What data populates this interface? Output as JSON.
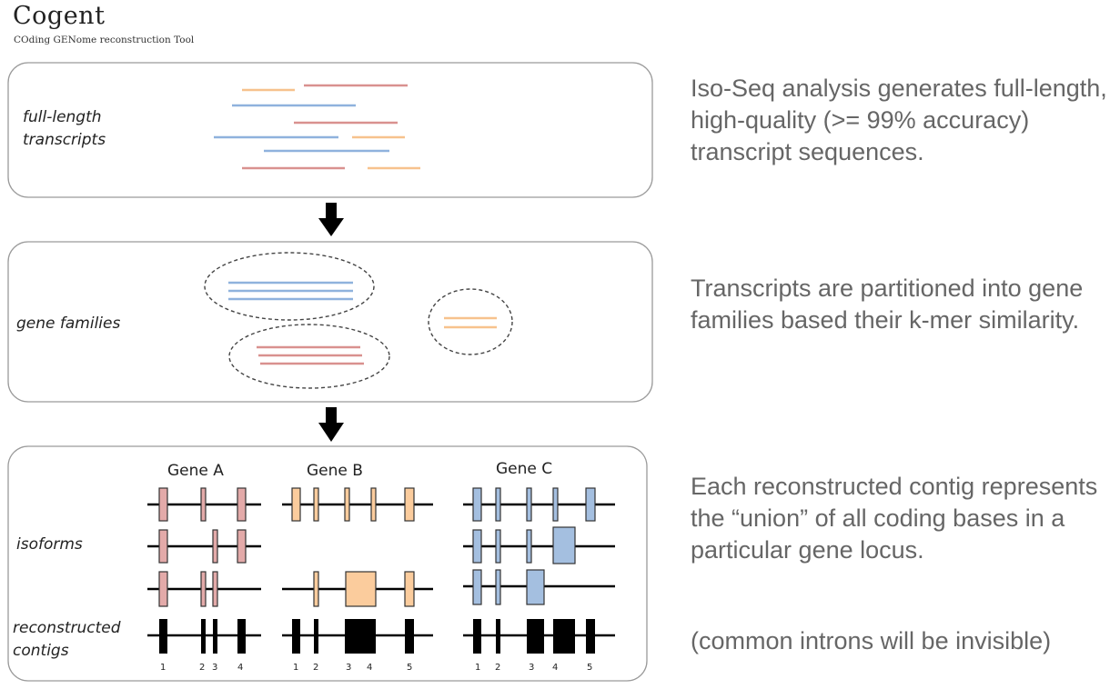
{
  "header": {
    "title": "Cogent",
    "subtitle": "COding GENome reconstruction Tool"
  },
  "panels": [
    {
      "label_lines": [
        "full-length",
        "transcripts"
      ],
      "description": "Iso-Seq analysis generates full-length, high-quality (>= 99% accuracy) transcript sequences."
    },
    {
      "label_lines": [
        "gene families"
      ],
      "description": "Transcripts are partitioned into gene families based their k-mer similarity."
    },
    {
      "label_lines": [
        "isoforms"
      ],
      "description": "Each reconstructed contig represents the “union” of all coding bases in a particular gene locus."
    }
  ],
  "contig_label_lines": [
    "reconstructed",
    "contigs"
  ],
  "note": "(common introns will be invisible)",
  "genes": [
    {
      "name": "Gene A",
      "exon_numbers": [
        "1",
        "2",
        "3",
        "4"
      ]
    },
    {
      "name": "Gene B",
      "exon_numbers": [
        "1",
        "2",
        "3",
        "4",
        "5"
      ]
    },
    {
      "name": "Gene C",
      "exon_numbers": [
        "1",
        "2",
        "3",
        "4",
        "5"
      ]
    }
  ],
  "colors": {
    "transcript_pink": "#d9918f",
    "transcript_blue": "#8fb2dd",
    "transcript_orange": "#f7c28d",
    "exon_pink": "#e3aaa9",
    "exon_orange": "#fbcc9d",
    "exon_blue": "#a4bfe0",
    "contig": "#000000",
    "description_text": "#666666"
  }
}
